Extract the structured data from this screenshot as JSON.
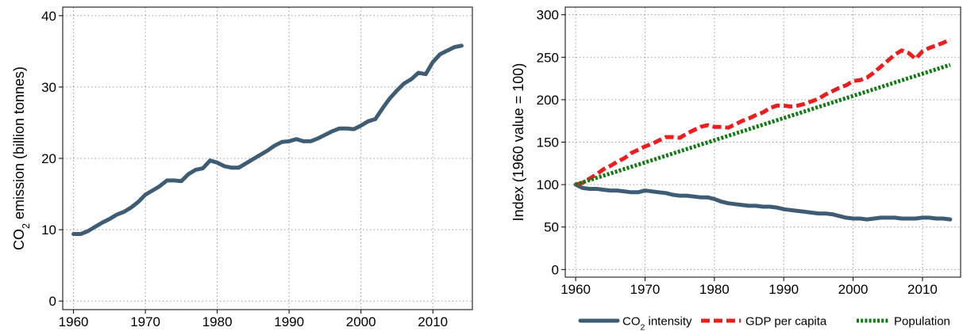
{
  "chart_data": [
    {
      "type": "line",
      "xlabel": "",
      "ylabel": {
        "prefix": "CO",
        "sub": "2",
        "suffix": " emission (billion tonnes)"
      },
      "xlim": [
        1960,
        2014
      ],
      "ylim": [
        0,
        40
      ],
      "xticks": [
        1960,
        1970,
        1980,
        1990,
        2000,
        2010
      ],
      "yticks": [
        0,
        10,
        20,
        30,
        40
      ],
      "grid": true,
      "series": [
        {
          "color": "#3e5c73",
          "style": "solid",
          "x": [
            1960,
            1961,
            1962,
            1963,
            1964,
            1965,
            1966,
            1967,
            1968,
            1969,
            1970,
            1971,
            1972,
            1973,
            1974,
            1975,
            1976,
            1977,
            1978,
            1979,
            1980,
            1981,
            1982,
            1983,
            1984,
            1985,
            1986,
            1987,
            1988,
            1989,
            1990,
            1991,
            1992,
            1993,
            1994,
            1995,
            1996,
            1997,
            1998,
            1999,
            2000,
            2001,
            2002,
            2003,
            2004,
            2005,
            2006,
            2007,
            2008,
            2009,
            2010,
            2011,
            2012,
            2013,
            2014
          ],
          "y": [
            9.4,
            9.4,
            9.8,
            10.4,
            11.0,
            11.5,
            12.1,
            12.5,
            13.1,
            13.9,
            14.9,
            15.5,
            16.1,
            16.9,
            16.9,
            16.8,
            17.8,
            18.4,
            18.6,
            19.7,
            19.4,
            18.9,
            18.7,
            18.7,
            19.3,
            19.9,
            20.5,
            21.1,
            21.8,
            22.3,
            22.4,
            22.7,
            22.4,
            22.4,
            22.8,
            23.3,
            23.8,
            24.2,
            24.2,
            24.1,
            24.6,
            25.2,
            25.5,
            27.0,
            28.4,
            29.5,
            30.5,
            31.1,
            32.0,
            31.8,
            33.5,
            34.6,
            35.1,
            35.6,
            35.8
          ]
        }
      ]
    },
    {
      "type": "line",
      "xlabel": "",
      "ylabel": "Index (1960 value = 100)",
      "xlim": [
        1960,
        2014
      ],
      "ylim": [
        0,
        300
      ],
      "xticks": [
        1960,
        1970,
        1980,
        1990,
        2000,
        2010
      ],
      "yticks": [
        0,
        50,
        100,
        150,
        200,
        250,
        300
      ],
      "grid": true,
      "legend_position": "bottom",
      "series": [
        {
          "name": {
            "prefix": "CO",
            "sub": "2",
            "suffix": " intensity"
          },
          "color": "#3e5c73",
          "style": "solid",
          "x": [
            1960,
            1961,
            1962,
            1963,
            1964,
            1965,
            1966,
            1967,
            1968,
            1969,
            1970,
            1971,
            1972,
            1973,
            1974,
            1975,
            1976,
            1977,
            1978,
            1979,
            1980,
            1981,
            1982,
            1983,
            1984,
            1985,
            1986,
            1987,
            1988,
            1989,
            1990,
            1991,
            1992,
            1993,
            1994,
            1995,
            1996,
            1997,
            1998,
            1999,
            2000,
            2001,
            2002,
            2003,
            2004,
            2005,
            2006,
            2007,
            2008,
            2009,
            2010,
            2011,
            2012,
            2013,
            2014
          ],
          "y": [
            100,
            96,
            95,
            95,
            94,
            93,
            93,
            92,
            91,
            91,
            93,
            92,
            91,
            90,
            88,
            87,
            87,
            86,
            85,
            85,
            83,
            80,
            78,
            77,
            76,
            75,
            75,
            74,
            74,
            73,
            71,
            70,
            69,
            68,
            67,
            66,
            66,
            65,
            63,
            61,
            60,
            60,
            59,
            60,
            61,
            61,
            61,
            60,
            60,
            60,
            61,
            61,
            60,
            60,
            59
          ]
        },
        {
          "name": "GDP per capita",
          "color": "#ee1c1c",
          "style": "dashed",
          "x": [
            1960,
            1961,
            1962,
            1963,
            1964,
            1965,
            1966,
            1967,
            1968,
            1969,
            1970,
            1971,
            1972,
            1973,
            1974,
            1975,
            1976,
            1977,
            1978,
            1979,
            1980,
            1981,
            1982,
            1983,
            1984,
            1985,
            1986,
            1987,
            1988,
            1989,
            1990,
            1991,
            1992,
            1993,
            1994,
            1995,
            1996,
            1997,
            1998,
            1999,
            2000,
            2001,
            2002,
            2003,
            2004,
            2005,
            2006,
            2007,
            2008,
            2009,
            2010,
            2011,
            2012,
            2013,
            2014
          ],
          "y": [
            100,
            102,
            107,
            112,
            118,
            122,
            127,
            131,
            137,
            141,
            145,
            148,
            152,
            156,
            156,
            155,
            160,
            164,
            168,
            170,
            168,
            168,
            167,
            171,
            175,
            178,
            182,
            185,
            190,
            193,
            193,
            192,
            193,
            195,
            198,
            201,
            206,
            210,
            214,
            217,
            222,
            223,
            226,
            232,
            239,
            246,
            253,
            258,
            255,
            248,
            257,
            261,
            264,
            267,
            271
          ]
        },
        {
          "name": "Population",
          "color": "#127a12",
          "style": "dotted",
          "x": [
            1960,
            2014
          ],
          "y": [
            100,
            241
          ]
        }
      ]
    }
  ]
}
